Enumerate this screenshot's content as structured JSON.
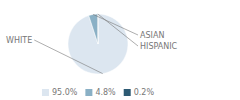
{
  "chart_data": {
    "type": "pie",
    "categories": [
      "WHITE",
      "ASIAN",
      "HISPANIC"
    ],
    "values": [
      95.0,
      4.8,
      0.2
    ],
    "value_labels": [
      "95.0%",
      "4.8%",
      "0.2%"
    ],
    "colors": [
      "#dce6f0",
      "#8ab0c5",
      "#2d5a73"
    ],
    "legend": "bottom"
  }
}
